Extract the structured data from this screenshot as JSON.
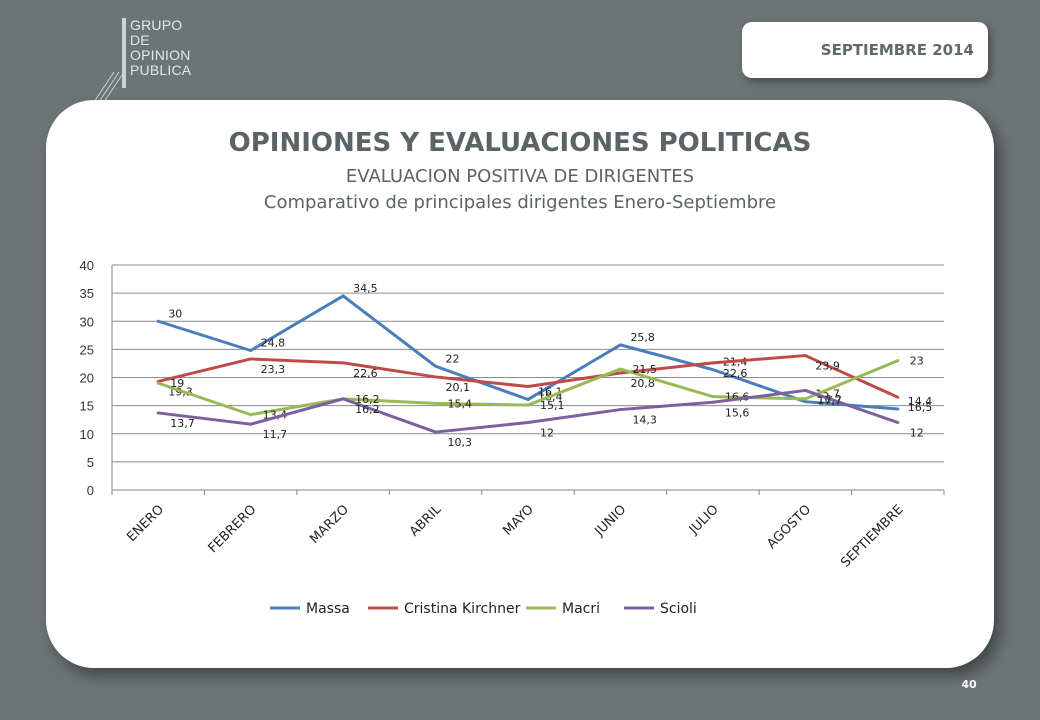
{
  "header": {
    "logo_text": "GRUPO\nDE\nOPINION\nPUBLICA",
    "month_badge": "SEPTIEMBRE  2014"
  },
  "slide": {
    "title": "OPINIONES Y EVALUACIONES POLITICAS",
    "subtitle": "EVALUACION POSITIVA DE DIRIGENTES",
    "subtitle2": "Comparativo de principales dirigentes Enero-Septiembre",
    "page_number": "40"
  },
  "chart_data": {
    "type": "line",
    "categories": [
      "ENERO",
      "FEBRERO",
      "MARZO",
      "ABRIL",
      "MAYO",
      "JUNIO",
      "JULIO",
      "AGOSTO",
      "SEPTIEMBRE"
    ],
    "ylim": [
      0,
      40
    ],
    "yticks": [
      0,
      5,
      10,
      15,
      20,
      25,
      30,
      35,
      40
    ],
    "grid": true,
    "legend_position": "bottom",
    "series": [
      {
        "name": "Massa",
        "color": "#4a7ebb",
        "values": [
          30,
          24.8,
          34.5,
          22,
          16.1,
          25.8,
          21.4,
          15.7,
          14.4
        ],
        "labels": [
          "30",
          "24,8",
          "34,5",
          "22",
          "16,1",
          "25,8",
          "21,4",
          "15,7",
          "14,4"
        ]
      },
      {
        "name": "Cristina Kirchner",
        "color": "#be4b48",
        "values": [
          19.3,
          23.3,
          22.6,
          20.1,
          18.4,
          20.8,
          22.6,
          23.9,
          16.5
        ],
        "labels": [
          "19,3",
          "23,3",
          "22,6",
          "20,1",
          "18,4",
          "20,8",
          "22,6",
          "23,9",
          "16,5"
        ]
      },
      {
        "name": "Macri",
        "color": "#98b954",
        "values": [
          19,
          13.4,
          16.2,
          15.4,
          15.1,
          21.5,
          16.6,
          16.2,
          23
        ],
        "labels": [
          "19",
          "13,4",
          "16,2",
          "15,4",
          "15,1",
          "21,5",
          "16,6",
          "16,2",
          "23"
        ]
      },
      {
        "name": "Scioli",
        "color": "#7d60a0",
        "values": [
          13.7,
          11.7,
          16.2,
          10.3,
          12,
          14.3,
          15.6,
          17.7,
          12
        ],
        "labels": [
          "13,7",
          "11,7",
          "16,2",
          "10,3",
          "12",
          "14,3",
          "15,6",
          "17,7",
          "12"
        ]
      }
    ]
  }
}
